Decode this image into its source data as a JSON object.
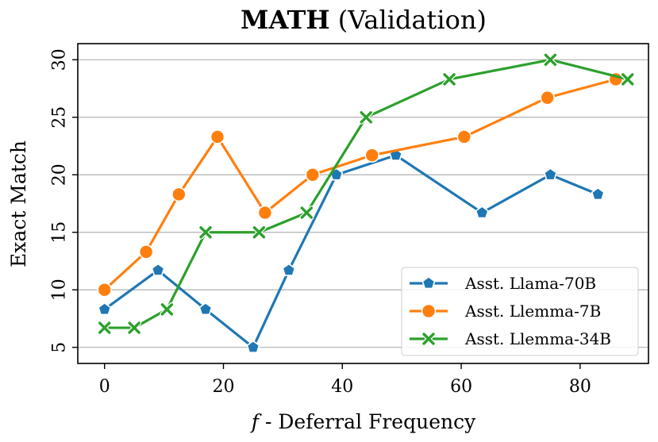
{
  "chart_data": {
    "type": "line",
    "title": {
      "bold": "MATH",
      "rest": " (Validation)"
    },
    "xlabel": {
      "italic": "f",
      "rest": " - Deferral Frequency"
    },
    "ylabel": "Exact Match",
    "xlim": [
      -4.5,
      91.5
    ],
    "ylim": [
      3.6,
      31.4
    ],
    "xticks": [
      0,
      20,
      40,
      60,
      80
    ],
    "xtick_labels": [
      "0",
      "20",
      "40",
      "60",
      "80"
    ],
    "yticks": [
      5,
      10,
      15,
      20,
      25,
      30
    ],
    "ytick_labels": [
      "5",
      "10",
      "15",
      "20",
      "25",
      "30"
    ],
    "grid": "horizontal",
    "legend_position": "bottom-right",
    "series": [
      {
        "name": "Asst. Llama-70B",
        "color": "#1f77b4",
        "marker": "pentagon",
        "x": [
          0,
          9,
          17,
          25,
          31,
          39,
          49,
          63.5,
          75,
          83
        ],
        "y": [
          8.3,
          11.7,
          8.3,
          5.0,
          11.7,
          20.0,
          21.7,
          16.7,
          20.0,
          18.3
        ]
      },
      {
        "name": "Asst. Llemma-7B",
        "color": "#ff7f0e",
        "marker": "circle",
        "x": [
          0,
          7,
          12.5,
          19,
          27,
          35,
          45,
          60.5,
          74.5,
          86
        ],
        "y": [
          10.0,
          13.3,
          18.3,
          23.3,
          16.7,
          20.0,
          21.7,
          23.3,
          26.7,
          28.3
        ]
      },
      {
        "name": "Asst. Llemma-34B",
        "color": "#2ca02c",
        "marker": "x",
        "x": [
          0,
          5,
          10.5,
          17,
          26,
          34,
          44,
          58,
          75,
          88
        ],
        "y": [
          6.7,
          6.7,
          8.3,
          15.0,
          15.0,
          16.7,
          25.0,
          28.3,
          30.0,
          28.3
        ]
      }
    ]
  }
}
